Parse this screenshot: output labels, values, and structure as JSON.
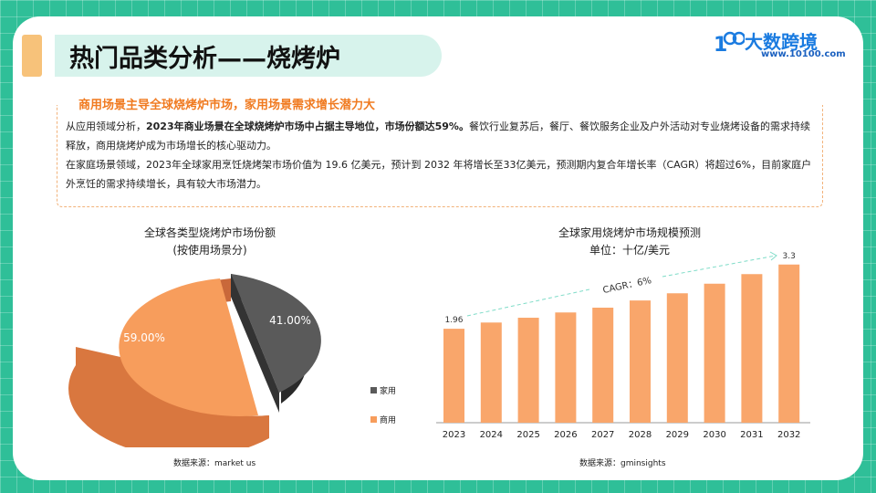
{
  "header": {
    "title": "热门品类分析——烧烤炉",
    "logo_name": "大数跨境",
    "logo_url": "www.10100.com"
  },
  "summary": {
    "heading": "商用场景主导全球烧烤炉市场，家用场景需求增长潜力大",
    "p1_lead": "从应用领域分析，",
    "p1_bold": "2023年商业场景在全球烧烤炉市场中占据主导地位，市场份额达59%。",
    "p1_rest": "餐饮行业复苏后，餐厅、餐饮服务企业及户外活动对专业烧烤设备的需求持续释放，商用烧烤炉成为市场增长的核心驱动力。",
    "p2": "在家庭场景领域，2023年全球家用烹饪烧烤架市场价值为 19.6 亿美元，预计到 2032 年将增长至33亿美元，预测期内复合年增长率（CAGR）将超过6%，目前家庭户外烹饪的需求持续增长，具有较大市场潜力。"
  },
  "chart_data": [
    {
      "type": "pie",
      "title": "全球各类型烧烤炉市场份额",
      "subtitle": "(按使用场景分)",
      "slices": [
        {
          "name": "家用",
          "value": 41.0,
          "label": "41.00%",
          "color": "#404040"
        },
        {
          "name": "商用",
          "value": 59.0,
          "label": "59.00%",
          "color": "#f79d5c"
        }
      ],
      "legend_placement": "right",
      "source": "数据来源：market us"
    },
    {
      "type": "bar",
      "title": "全球家用烧烤炉市场规模预测",
      "subtitle": "单位：十亿/美元",
      "categories": [
        "2023",
        "2024",
        "2025",
        "2026",
        "2027",
        "2028",
        "2029",
        "2030",
        "2031",
        "2032"
      ],
      "values": [
        1.96,
        2.09,
        2.19,
        2.3,
        2.4,
        2.55,
        2.7,
        2.9,
        3.1,
        3.3
      ],
      "data_labels": {
        "2023": "1.96",
        "2032": "3.3"
      },
      "annotation": "CAGR：6%",
      "color": "#f9a66b",
      "source": "数据来源：gminsights"
    }
  ]
}
